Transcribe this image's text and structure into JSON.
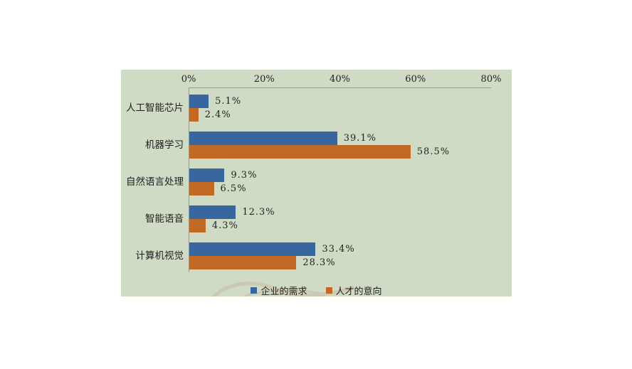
{
  "chart_data": {
    "type": "bar",
    "orientation": "horizontal",
    "title": "",
    "categories": [
      "人工智能芯片",
      "机器学习",
      "自然语言处理",
      "智能语音",
      "计算机视觉"
    ],
    "series": [
      {
        "name": "企业的需求",
        "color": "#38669e",
        "values": [
          5.1,
          39.1,
          9.3,
          12.3,
          33.4
        ]
      },
      {
        "name": "人才的意向",
        "color": "#c06a26",
        "values": [
          2.4,
          58.5,
          6.5,
          4.3,
          28.3
        ]
      }
    ],
    "data_labels": {
      "企业的需求": [
        "5.1%",
        "39.1%",
        "9.3%",
        "12.3%",
        "33.4%"
      ],
      "人才的意向": [
        "2.4%",
        "58.5%",
        "6.5%",
        "4.3%",
        "28.3%"
      ]
    },
    "x_ticks": [
      "0%",
      "20%",
      "40%",
      "60%",
      "80%"
    ],
    "xlim": [
      0,
      80
    ],
    "axis_position": "top",
    "grid": false,
    "legend_position": "bottom",
    "colors": {
      "background": "#cfdbc5",
      "axis": "#8f9c8f",
      "text": "#1f1f1f"
    }
  }
}
